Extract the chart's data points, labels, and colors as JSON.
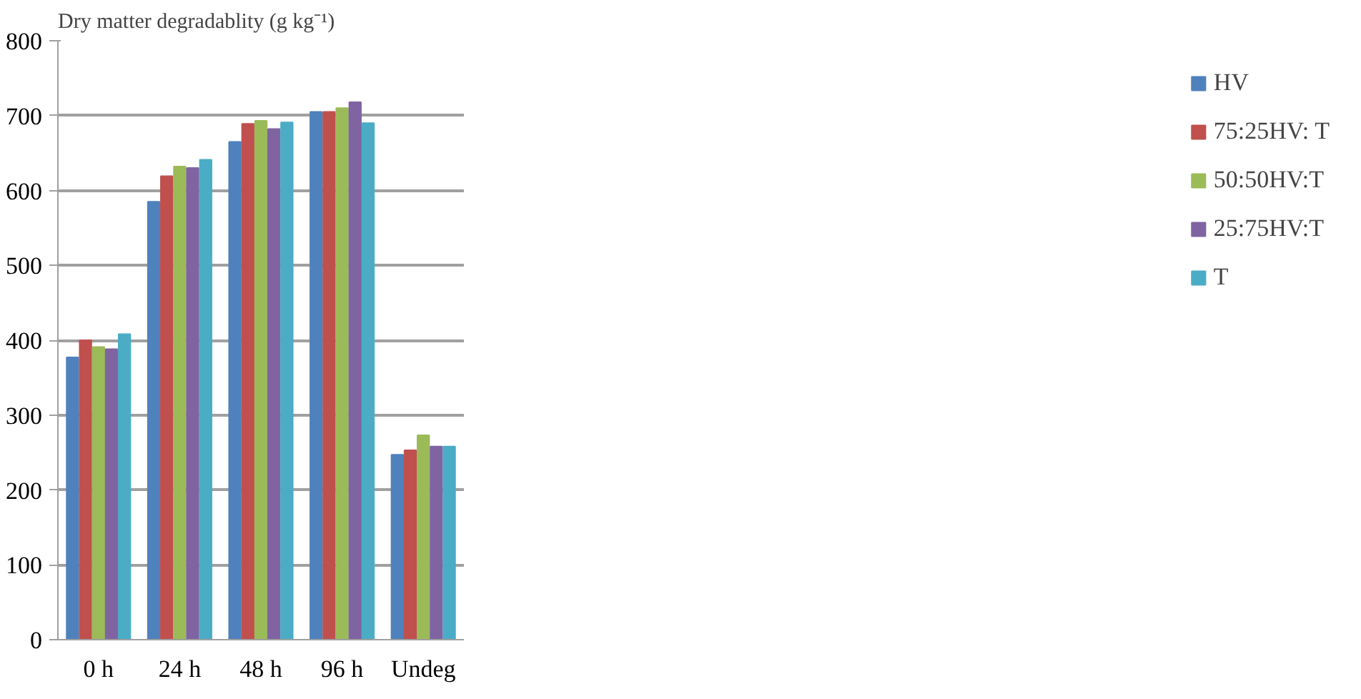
{
  "chart_data": {
    "type": "bar",
    "title": "Dry matter degradablity (g kg⁻¹)",
    "categories": [
      "0 h",
      "24 h",
      "48 h",
      "96 h",
      "Undeg"
    ],
    "series": [
      {
        "name": "HV",
        "color": "#4f81bd",
        "values": [
          377,
          585,
          665,
          705,
          247
        ]
      },
      {
        "name": "75:25HV: T",
        "color": "#c0504d",
        "values": [
          400,
          619,
          689,
          705,
          253
        ]
      },
      {
        "name": "50:50HV:T",
        "color": "#9bbb59",
        "values": [
          391,
          632,
          693,
          710,
          273
        ]
      },
      {
        "name": "25:75HV:T",
        "color": "#8064a2",
        "values": [
          388,
          630,
          682,
          718,
          258
        ]
      },
      {
        "name": "T",
        "color": "#4bacc6",
        "values": [
          408,
          641,
          691,
          690,
          258
        ]
      }
    ],
    "ylim": [
      0,
      800
    ],
    "yticks": [
      0,
      100,
      200,
      300,
      400,
      500,
      600,
      700,
      800
    ],
    "grid": "y",
    "legend": "right"
  }
}
